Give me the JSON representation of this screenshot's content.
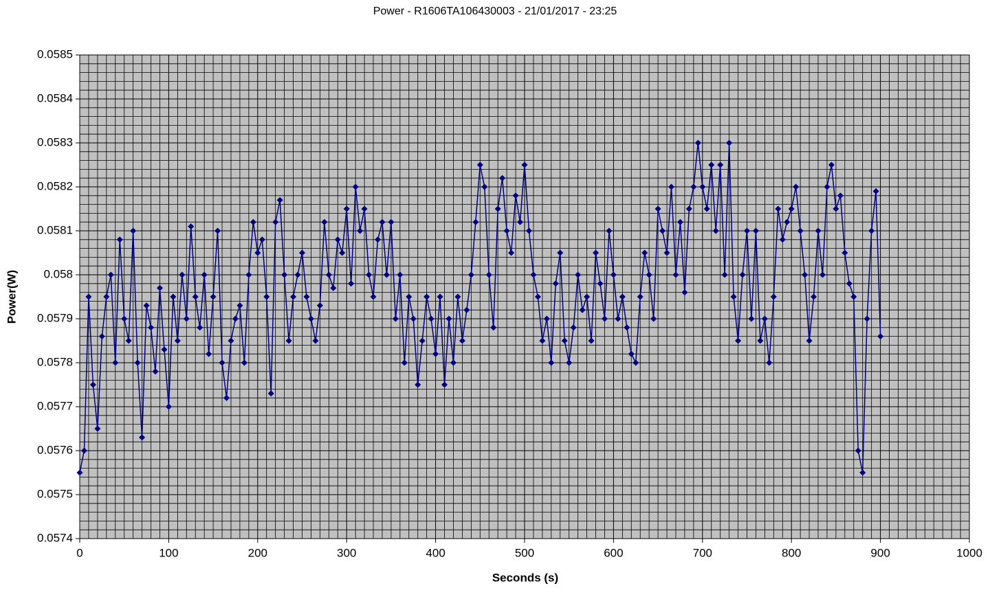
{
  "chart_data": {
    "type": "line",
    "title": "Power - R1606TA106430003 - 21/01/2017 - 23:25",
    "xlabel": "Seconds (s)",
    "ylabel": "Power(W)",
    "xlim": [
      0,
      1000
    ],
    "ylim": [
      0.0574,
      0.0585
    ],
    "xticks": [
      0,
      100,
      200,
      300,
      400,
      500,
      600,
      700,
      800,
      900,
      1000
    ],
    "yticks": [
      0.0574,
      0.0575,
      0.0576,
      0.0577,
      0.0578,
      0.0579,
      0.058,
      0.0581,
      0.0582,
      0.0583,
      0.0584,
      0.0585
    ],
    "grid": true,
    "background": "#c0c0c0",
    "x": [
      0,
      5,
      10,
      15,
      20,
      25,
      30,
      35,
      40,
      45,
      50,
      55,
      60,
      65,
      70,
      75,
      80,
      85,
      90,
      95,
      100,
      105,
      110,
      115,
      120,
      125,
      130,
      135,
      140,
      145,
      150,
      155,
      160,
      165,
      170,
      175,
      180,
      185,
      190,
      195,
      200,
      205,
      210,
      215,
      220,
      225,
      230,
      235,
      240,
      245,
      250,
      255,
      260,
      265,
      270,
      275,
      280,
      285,
      290,
      295,
      300,
      305,
      310,
      315,
      320,
      325,
      330,
      335,
      340,
      345,
      350,
      355,
      360,
      365,
      370,
      375,
      380,
      385,
      390,
      395,
      400,
      405,
      410,
      415,
      420,
      425,
      430,
      435,
      440,
      445,
      450,
      455,
      460,
      465,
      470,
      475,
      480,
      485,
      490,
      495,
      500,
      505,
      510,
      515,
      520,
      525,
      530,
      535,
      540,
      545,
      550,
      555,
      560,
      565,
      570,
      575,
      580,
      585,
      590,
      595,
      600,
      605,
      610,
      615,
      620,
      625,
      630,
      635,
      640,
      645,
      650,
      655,
      660,
      665,
      670,
      675,
      680,
      685,
      690,
      695,
      700,
      705,
      710,
      715,
      720,
      725,
      730,
      735,
      740,
      745,
      750,
      755,
      760,
      765,
      770,
      775,
      780,
      785,
      790,
      795,
      800,
      805,
      810,
      815,
      820,
      825,
      830,
      835,
      840,
      845,
      850,
      855,
      860,
      865,
      870,
      875,
      880,
      885,
      890,
      895,
      900
    ],
    "series": [
      {
        "name": "Power",
        "color": "#000080",
        "values": [
          0.05755,
          0.0576,
          0.05795,
          0.05775,
          0.05765,
          0.05786,
          0.05795,
          0.058,
          0.0578,
          0.05808,
          0.0579,
          0.05785,
          0.0581,
          0.0578,
          0.05763,
          0.05793,
          0.05788,
          0.05778,
          0.05797,
          0.05783,
          0.0577,
          0.05795,
          0.05785,
          0.058,
          0.0579,
          0.05811,
          0.05795,
          0.05788,
          0.058,
          0.05782,
          0.05795,
          0.0581,
          0.0578,
          0.05772,
          0.05785,
          0.0579,
          0.05793,
          0.0578,
          0.058,
          0.05812,
          0.05805,
          0.05808,
          0.05795,
          0.05773,
          0.05812,
          0.05817,
          0.058,
          0.05785,
          0.05795,
          0.058,
          0.05805,
          0.05795,
          0.0579,
          0.05785,
          0.05793,
          0.05812,
          0.058,
          0.05797,
          0.05808,
          0.05805,
          0.05815,
          0.05798,
          0.0582,
          0.0581,
          0.05815,
          0.058,
          0.05795,
          0.05808,
          0.05812,
          0.058,
          0.05812,
          0.0579,
          0.058,
          0.0578,
          0.05795,
          0.0579,
          0.05775,
          0.05785,
          0.05795,
          0.0579,
          0.05782,
          0.05795,
          0.05775,
          0.0579,
          0.0578,
          0.05795,
          0.05785,
          0.05792,
          0.058,
          0.05812,
          0.05825,
          0.0582,
          0.058,
          0.05788,
          0.05815,
          0.05822,
          0.0581,
          0.05805,
          0.05818,
          0.05812,
          0.05825,
          0.0581,
          0.058,
          0.05795,
          0.05785,
          0.0579,
          0.0578,
          0.05798,
          0.05805,
          0.05785,
          0.0578,
          0.05788,
          0.058,
          0.05792,
          0.05795,
          0.05785,
          0.05805,
          0.05798,
          0.0579,
          0.0581,
          0.058,
          0.0579,
          0.05795,
          0.05788,
          0.05782,
          0.0578,
          0.05795,
          0.05805,
          0.058,
          0.0579,
          0.05815,
          0.0581,
          0.05805,
          0.0582,
          0.058,
          0.05812,
          0.05796,
          0.05815,
          0.0582,
          0.0583,
          0.0582,
          0.05815,
          0.05825,
          0.0581,
          0.05825,
          0.058,
          0.0583,
          0.05795,
          0.05785,
          0.058,
          0.0581,
          0.0579,
          0.0581,
          0.05785,
          0.0579,
          0.0578,
          0.05795,
          0.05815,
          0.05808,
          0.05812,
          0.05815,
          0.0582,
          0.0581,
          0.058,
          0.05785,
          0.05795,
          0.0581,
          0.058,
          0.0582,
          0.05825,
          0.05815,
          0.05818,
          0.05805,
          0.05798,
          0.05795,
          0.0576,
          0.05755,
          0.0579,
          0.0581,
          0.05819,
          0.05786
        ]
      }
    ]
  }
}
